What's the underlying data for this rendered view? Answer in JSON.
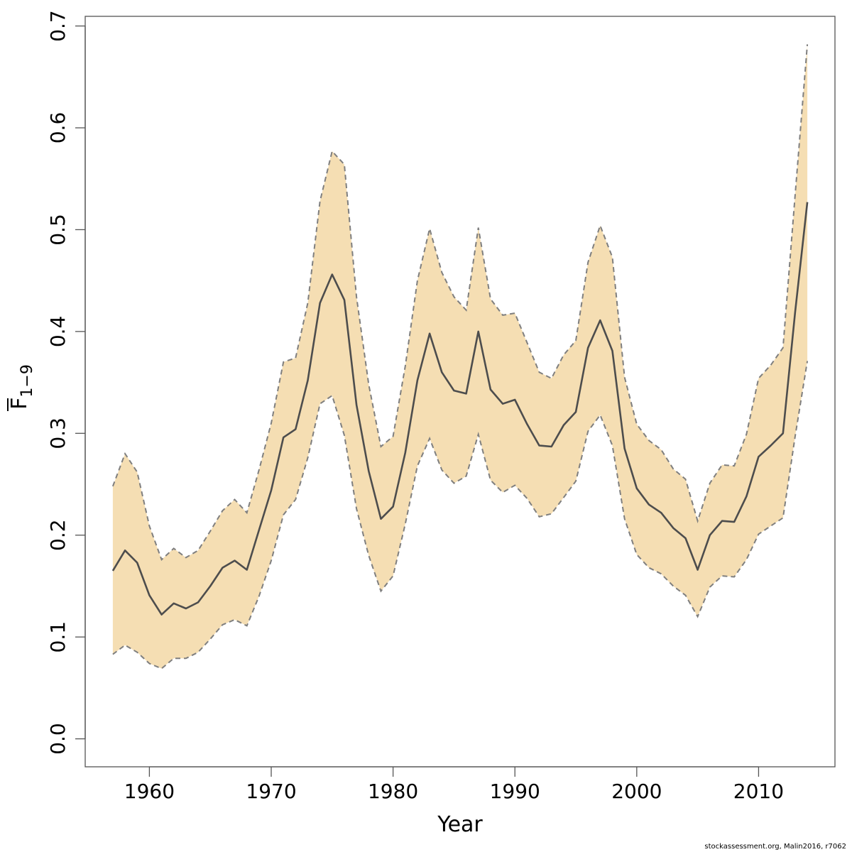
{
  "chart_data": {
    "type": "area",
    "xlabel": "Year",
    "ylabel": {
      "main": "F",
      "sub": "1−9"
    },
    "xlim": [
      1955,
      2016
    ],
    "ylim": [
      0.0,
      0.7
    ],
    "x_ticks": [
      1960,
      1970,
      1980,
      1990,
      2000,
      2010
    ],
    "y_ticks": [
      0.0,
      0.1,
      0.2,
      0.3,
      0.4,
      0.5,
      0.6,
      0.7
    ],
    "y_tick_labels": [
      "0.0",
      "0.1",
      "0.2",
      "0.3",
      "0.4",
      "0.5",
      "0.6",
      "0.7"
    ],
    "x_tick_labels": [
      "1960",
      "1970",
      "1980",
      "1990",
      "2000",
      "2010"
    ],
    "grid": false,
    "colors": {
      "band": "#f5deb3",
      "line": "#4d4d4d",
      "bound": "#7f7f7f"
    },
    "x": [
      1957,
      1958,
      1959,
      1960,
      1961,
      1962,
      1963,
      1964,
      1965,
      1966,
      1967,
      1968,
      1969,
      1970,
      1971,
      1972,
      1973,
      1974,
      1975,
      1976,
      1977,
      1978,
      1979,
      1980,
      1981,
      1982,
      1983,
      1984,
      1985,
      1986,
      1987,
      1988,
      1989,
      1990,
      1991,
      1992,
      1993,
      1994,
      1995,
      1996,
      1997,
      1998,
      1999,
      2000,
      2001,
      2002,
      2003,
      2004,
      2005,
      2006,
      2007,
      2008,
      2009,
      2010,
      2011,
      2012,
      2013,
      2014
    ],
    "series": [
      {
        "role": "estimate",
        "values": [
          0.165,
          0.185,
          0.173,
          0.141,
          0.122,
          0.133,
          0.128,
          0.134,
          0.15,
          0.168,
          0.175,
          0.166,
          0.205,
          0.244,
          0.296,
          0.304,
          0.352,
          0.428,
          0.456,
          0.431,
          0.328,
          0.263,
          0.216,
          0.228,
          0.281,
          0.352,
          0.398,
          0.36,
          0.342,
          0.339,
          0.4,
          0.343,
          0.329,
          0.333,
          0.309,
          0.288,
          0.287,
          0.308,
          0.321,
          0.384,
          0.411,
          0.381,
          0.285,
          0.246,
          0.23,
          0.222,
          0.207,
          0.197,
          0.166,
          0.2,
          0.214,
          0.213,
          0.238,
          0.277,
          0.288,
          0.3,
          0.419,
          0.527
        ]
      },
      {
        "role": "upper",
        "values": [
          0.248,
          0.28,
          0.262,
          0.209,
          0.176,
          0.187,
          0.178,
          0.185,
          0.204,
          0.224,
          0.235,
          0.222,
          0.264,
          0.31,
          0.37,
          0.374,
          0.428,
          0.528,
          0.577,
          0.564,
          0.434,
          0.348,
          0.287,
          0.297,
          0.366,
          0.45,
          0.501,
          0.458,
          0.434,
          0.421,
          0.502,
          0.432,
          0.416,
          0.418,
          0.389,
          0.36,
          0.354,
          0.377,
          0.391,
          0.468,
          0.504,
          0.473,
          0.355,
          0.309,
          0.293,
          0.284,
          0.265,
          0.255,
          0.214,
          0.251,
          0.269,
          0.268,
          0.299,
          0.354,
          0.367,
          0.384,
          0.534,
          0.682
        ]
      },
      {
        "role": "lower",
        "values": [
          0.083,
          0.092,
          0.085,
          0.074,
          0.069,
          0.079,
          0.079,
          0.085,
          0.098,
          0.112,
          0.117,
          0.111,
          0.14,
          0.175,
          0.22,
          0.235,
          0.276,
          0.329,
          0.337,
          0.298,
          0.226,
          0.18,
          0.145,
          0.16,
          0.211,
          0.268,
          0.295,
          0.264,
          0.251,
          0.258,
          0.299,
          0.254,
          0.242,
          0.249,
          0.236,
          0.218,
          0.221,
          0.237,
          0.253,
          0.302,
          0.318,
          0.288,
          0.216,
          0.181,
          0.168,
          0.162,
          0.15,
          0.141,
          0.12,
          0.149,
          0.16,
          0.159,
          0.176,
          0.201,
          0.209,
          0.217,
          0.297,
          0.371
        ]
      }
    ]
  },
  "footer": {
    "credit": "stockassessment.org, Malin2016, r7062"
  }
}
